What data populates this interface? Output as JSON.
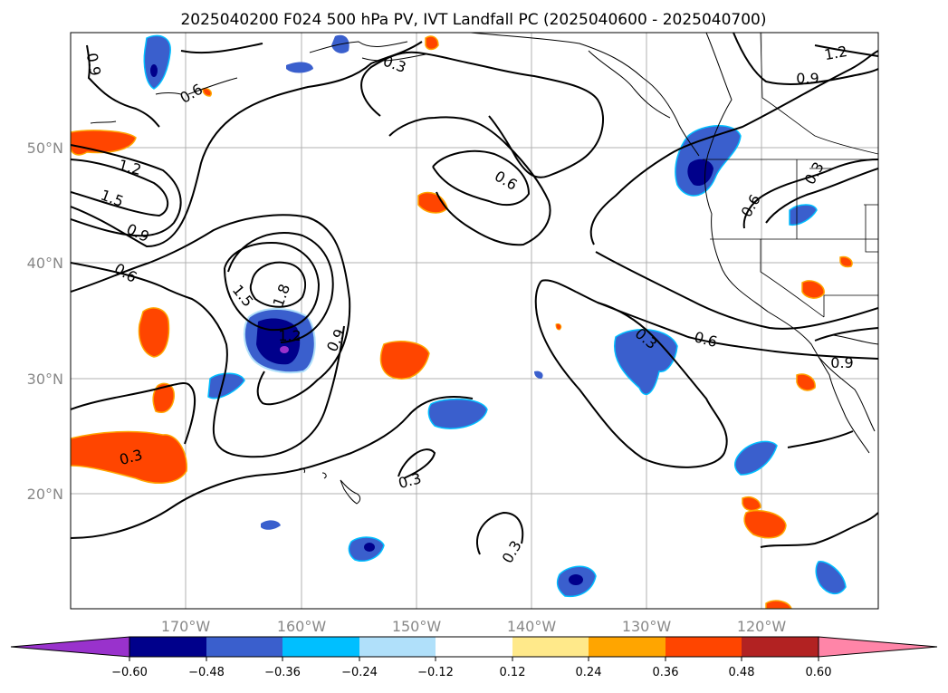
{
  "title": "2025040200 F024 500 hPa PV, IVT Landfall PC (2025040600 - 2025040700)",
  "lat_labels": [
    "50°N",
    "40°N",
    "30°N",
    "20°N"
  ],
  "lon_labels": [
    "170°W",
    "160°W",
    "150°W",
    "140°W",
    "130°W",
    "120°W"
  ],
  "colorbar": {
    "colors": [
      "#9932cc",
      "#00008b",
      "#3a5fcd",
      "#00bfff",
      "#b0e0fa",
      "#ffffff",
      "#ffe98a",
      "#ffa500",
      "#ff4500",
      "#b22222",
      "#ff85a8"
    ],
    "tick_labels": [
      "−0.60",
      "−0.48",
      "−0.36",
      "−0.24",
      "−0.12",
      "0.12",
      "0.24",
      "0.36",
      "0.48",
      "0.60"
    ]
  },
  "contour_labels": [
    "0.9",
    "0.6",
    "1.2",
    "1.5",
    "0.9",
    "0.6",
    "1.5",
    "1.8",
    "1.2",
    "0.9",
    "0.3",
    "0.3",
    "0.6",
    "0.3",
    "0.6",
    "0.3",
    "0.3",
    "1.2",
    "0.9",
    "0.6",
    "0.3",
    "0.9"
  ]
}
